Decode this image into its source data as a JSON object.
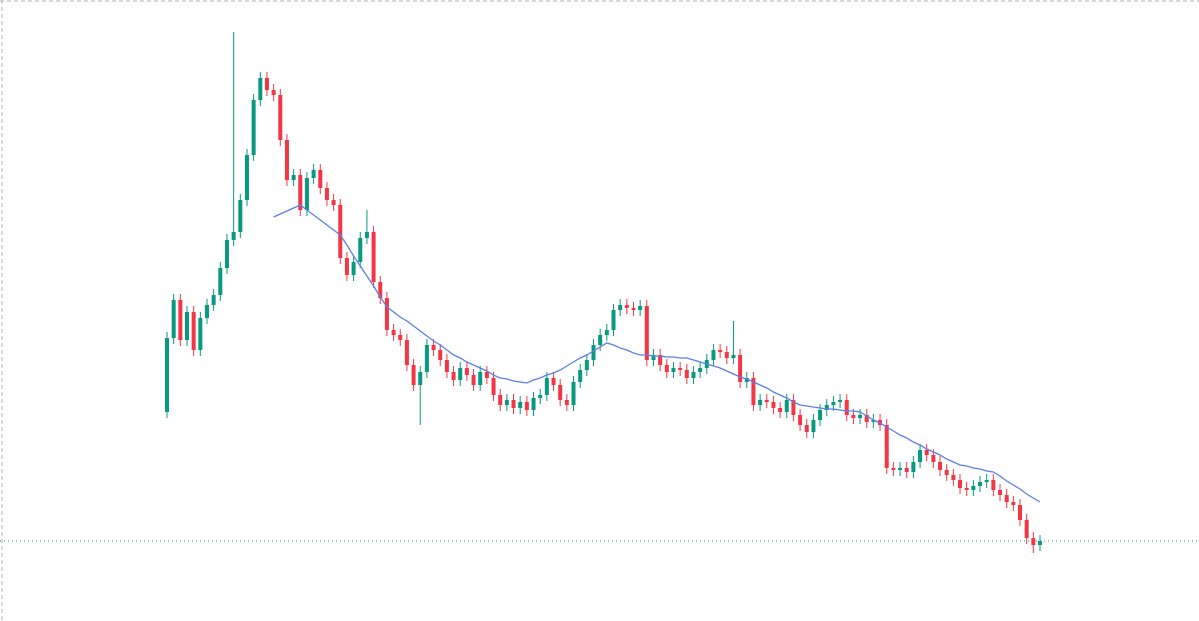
{
  "chart_data": {
    "type": "candlestick",
    "ylim": [
      0,
      621
    ],
    "up_color": "#089981",
    "down_color": "#f23645",
    "open": [
      209,
      283,
      321,
      281,
      309,
      271,
      303,
      316,
      326,
      353,
      381,
      389,
      421,
      466,
      521,
      543,
      531,
      526,
      481,
      441,
      446,
      411,
      443,
      451,
      433,
      421,
      416,
      363,
      346,
      359,
      383,
      389,
      339,
      323,
      291,
      286,
      281,
      256,
      236,
      249,
      276,
      271,
      261,
      249,
      241,
      253,
      246,
      236,
      249,
      243,
      226,
      216,
      221,
      213,
      219,
      211,
      223,
      226,
      243,
      236,
      221,
      216,
      239,
      251,
      261,
      276,
      286,
      291,
      311,
      316,
      313,
      311,
      315,
      261,
      266,
      256,
      249,
      253,
      251,
      243,
      249,
      253,
      261,
      271,
      269,
      263,
      266,
      239,
      243,
      216,
      221,
      219,
      213,
      209,
      221,
      206,
      196,
      189,
      201,
      211,
      216,
      219,
      221,
      206,
      203,
      206,
      199,
      201,
      196,
      153,
      151,
      153,
      149,
      159,
      171,
      166,
      159,
      151,
      146,
      141,
      133,
      131,
      135,
      139,
      141,
      131,
      126,
      119,
      116,
      101,
      83,
      76
    ],
    "high": [
      289,
      327,
      327,
      315,
      315,
      309,
      322,
      332,
      359,
      387,
      589,
      427,
      472,
      527,
      549,
      549,
      537,
      532,
      487,
      452,
      452,
      449,
      457,
      457,
      439,
      427,
      422,
      369,
      365,
      389,
      411,
      395,
      345,
      329,
      297,
      292,
      287,
      262,
      255,
      282,
      282,
      277,
      267,
      255,
      259,
      259,
      252,
      255,
      255,
      249,
      232,
      227,
      227,
      225,
      225,
      229,
      232,
      249,
      249,
      242,
      227,
      245,
      257,
      267,
      282,
      292,
      297,
      317,
      322,
      322,
      319,
      321,
      321,
      272,
      272,
      262,
      259,
      259,
      257,
      255,
      259,
      267,
      277,
      277,
      275,
      300,
      272,
      249,
      249,
      227,
      227,
      225,
      219,
      227,
      227,
      212,
      202,
      207,
      217,
      222,
      225,
      227,
      227,
      212,
      212,
      212,
      207,
      207,
      202,
      159,
      159,
      159,
      165,
      177,
      177,
      172,
      165,
      157,
      152,
      147,
      139,
      141,
      145,
      147,
      147,
      137,
      132,
      125,
      122,
      107,
      89,
      86
    ],
    "low": [
      203,
      277,
      275,
      275,
      265,
      265,
      297,
      310,
      320,
      347,
      375,
      383,
      415,
      460,
      515,
      525,
      520,
      475,
      435,
      435,
      405,
      405,
      437,
      427,
      415,
      410,
      357,
      340,
      340,
      353,
      377,
      333,
      317,
      285,
      280,
      275,
      250,
      230,
      196,
      243,
      265,
      255,
      243,
      235,
      235,
      240,
      230,
      230,
      237,
      220,
      210,
      210,
      207,
      207,
      205,
      205,
      217,
      220,
      230,
      215,
      210,
      210,
      233,
      245,
      255,
      270,
      280,
      285,
      305,
      307,
      305,
      305,
      255,
      255,
      250,
      243,
      243,
      245,
      237,
      237,
      243,
      247,
      255,
      263,
      257,
      257,
      233,
      233,
      210,
      210,
      213,
      207,
      203,
      203,
      200,
      190,
      183,
      183,
      195,
      205,
      210,
      213,
      200,
      197,
      197,
      193,
      193,
      190,
      147,
      145,
      145,
      143,
      143,
      153,
      160,
      153,
      145,
      140,
      135,
      127,
      125,
      125,
      129,
      133,
      125,
      120,
      113,
      110,
      95,
      77,
      68,
      70
    ],
    "close": [
      283,
      321,
      281,
      309,
      271,
      303,
      316,
      326,
      353,
      381,
      389,
      421,
      466,
      521,
      543,
      531,
      526,
      481,
      441,
      446,
      411,
      443,
      451,
      433,
      421,
      416,
      363,
      346,
      359,
      383,
      389,
      339,
      323,
      291,
      286,
      281,
      256,
      236,
      249,
      276,
      271,
      261,
      249,
      241,
      253,
      246,
      236,
      249,
      243,
      226,
      216,
      221,
      213,
      219,
      211,
      223,
      226,
      243,
      236,
      221,
      216,
      239,
      251,
      261,
      276,
      286,
      291,
      311,
      316,
      313,
      311,
      315,
      261,
      266,
      256,
      249,
      253,
      251,
      243,
      249,
      253,
      261,
      271,
      269,
      263,
      266,
      239,
      243,
      216,
      221,
      219,
      213,
      209,
      221,
      206,
      196,
      189,
      201,
      211,
      216,
      219,
      221,
      206,
      203,
      206,
      199,
      201,
      196,
      153,
      151,
      153,
      149,
      159,
      171,
      166,
      159,
      151,
      146,
      141,
      133,
      131,
      135,
      139,
      141,
      131,
      126,
      119,
      116,
      101,
      83,
      76,
      80
    ],
    "moving_average": {
      "color": "#5b7fe8",
      "values": [
        null,
        null,
        null,
        null,
        null,
        null,
        null,
        null,
        null,
        null,
        null,
        null,
        null,
        null,
        null,
        null,
        404,
        407,
        410,
        413,
        416,
        411,
        406,
        401,
        396,
        391,
        386,
        376,
        365,
        355,
        345,
        335,
        324,
        314,
        309,
        304,
        300,
        295,
        290,
        285,
        280,
        276,
        271,
        266,
        263,
        259,
        256,
        253,
        250,
        246,
        243,
        242,
        240,
        239,
        238,
        241,
        243,
        246,
        248,
        251,
        255,
        259,
        263,
        266,
        270,
        274,
        278,
        276,
        273,
        271,
        268,
        266,
        266,
        265,
        265,
        264,
        264,
        263,
        263,
        261,
        259,
        257,
        255,
        253,
        250,
        247,
        244,
        242,
        239,
        236,
        233,
        229,
        226,
        223,
        219,
        216,
        215,
        214,
        213,
        212,
        212,
        211,
        210,
        210,
        209,
        205,
        201,
        198,
        194,
        190,
        186,
        183,
        179,
        176,
        172,
        169,
        166,
        162,
        159,
        156,
        155,
        153,
        152,
        150,
        149,
        145,
        140,
        136,
        132,
        127,
        123,
        119
      ]
    },
    "last_price_line_color": "#089981"
  }
}
